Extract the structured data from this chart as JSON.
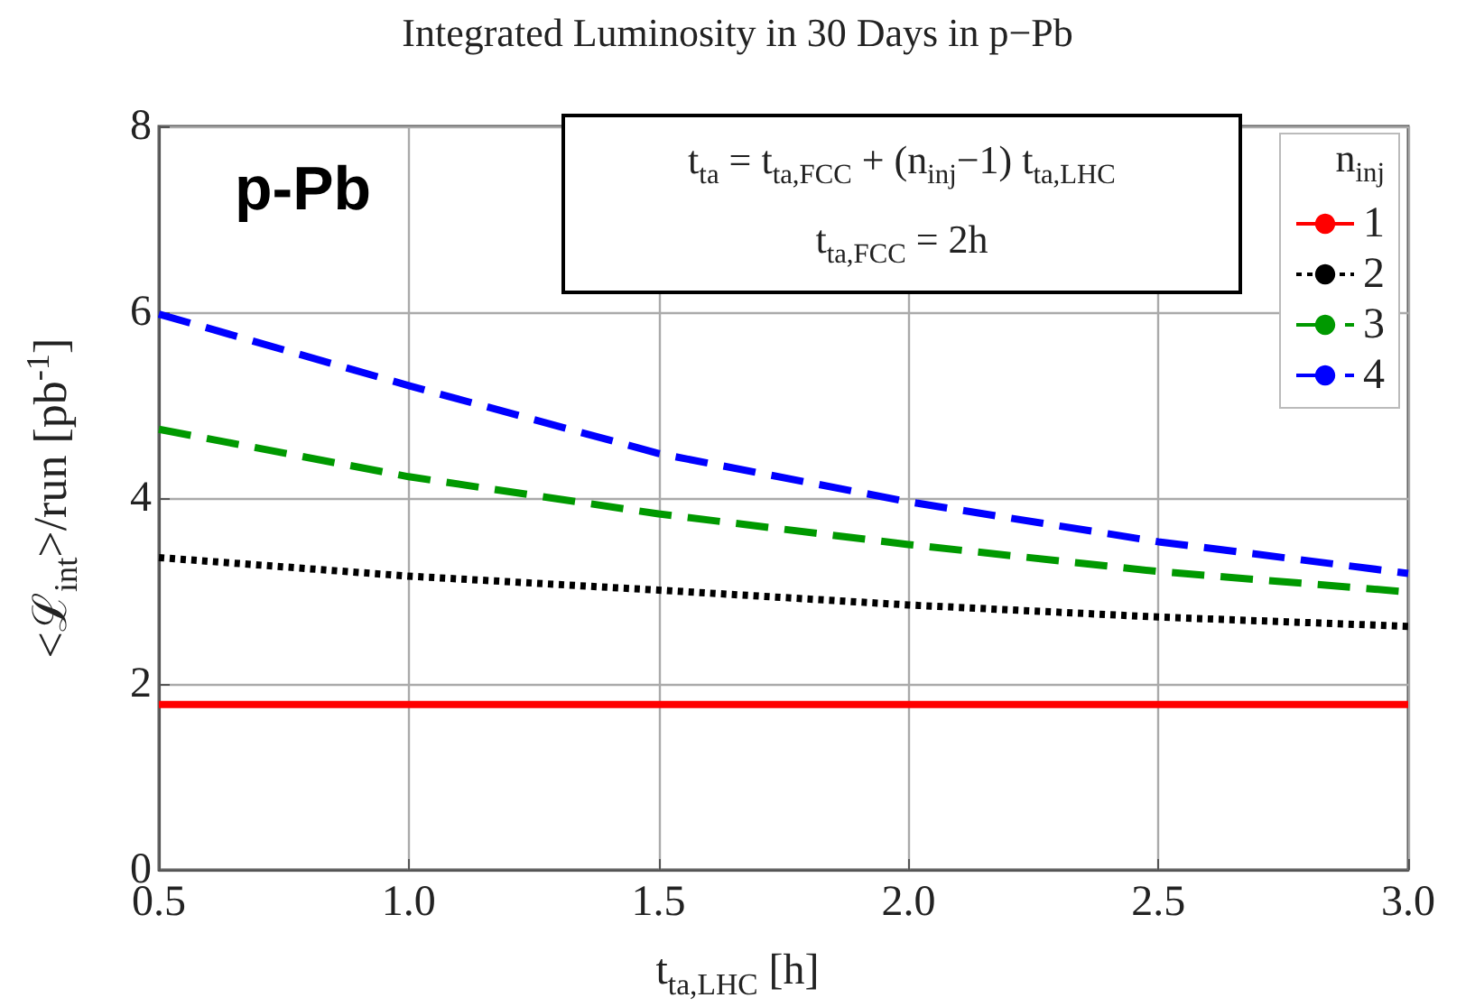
{
  "chart_data": {
    "type": "line",
    "title": "Integrated Luminosity in 30 Days in p−Pb",
    "xlabel": "t$_{ta,LHC}$ [h]",
    "ylabel": "<ℒ$_{int}$>/run [pb$^{-1}$]",
    "legend_title": "n$_{inj}$",
    "annotations": [
      "p-Pb",
      "t$_{ta}$ = t$_{ta,FCC}$ + (n$_{inj}$−1) t$_{ta,LHC}$",
      "t$_{ta,FCC}$ = 2h"
    ],
    "x": [
      0.5,
      1.0,
      1.5,
      2.0,
      2.5,
      3.0
    ],
    "series": [
      {
        "name": "1",
        "color": "#ff0000",
        "line_style": "solid",
        "values": [
          1.78,
          1.78,
          1.78,
          1.78,
          1.78,
          1.78
        ]
      },
      {
        "name": "2",
        "color": "#000000",
        "line_style": "dotted",
        "values": [
          3.36,
          3.16,
          3.01,
          2.85,
          2.72,
          2.62
        ]
      },
      {
        "name": "3",
        "color": "#009900",
        "line_style": "dashed",
        "values": [
          4.74,
          4.23,
          3.83,
          3.5,
          3.21,
          2.99
        ]
      },
      {
        "name": "4",
        "color": "#0000ff",
        "line_style": "dashed",
        "values": [
          5.98,
          5.21,
          4.48,
          3.96,
          3.53,
          3.19
        ]
      }
    ],
    "xlim": [
      0.5,
      3.0
    ],
    "xticks": [
      0.5,
      {
        "value": 1,
        "label": "1.0"
      },
      1.5,
      {
        "value": 2,
        "label": "2.0"
      },
      2.5,
      {
        "value": 3,
        "label": "3.0"
      }
    ],
    "ylim": [
      0,
      8
    ],
    "yticks": [
      0,
      2,
      4,
      6,
      8
    ],
    "grid": true,
    "legend": "top right",
    "marker": "none"
  }
}
